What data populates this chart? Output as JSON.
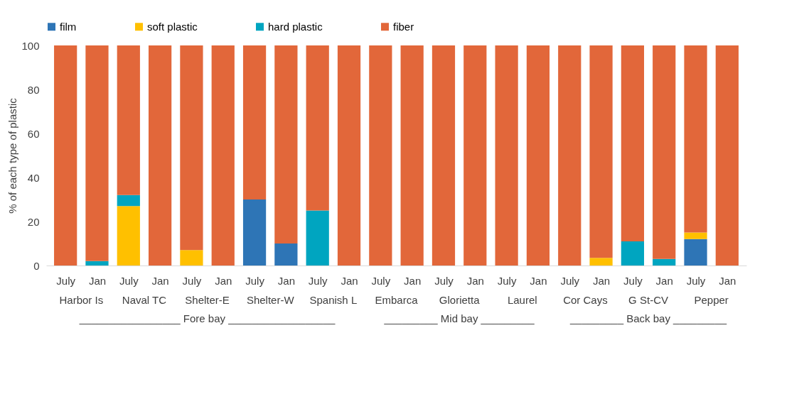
{
  "chart_data": {
    "type": "bar",
    "ylabel": "% of each type of plastic",
    "stacked": true,
    "legend": "top",
    "grid": false,
    "categories": [
      "July",
      "Jan",
      "July",
      "Jan",
      "July",
      "Jan",
      "July",
      "Jan",
      "July",
      "Jan",
      "July",
      "Jan",
      "July",
      "Jan",
      "July",
      "Jan",
      "July",
      "Jan",
      "July",
      "Jan",
      "July",
      "Jan"
    ],
    "series": [
      {
        "name": "film",
        "color": "#2e75b6",
        "values": [
          0,
          0,
          0,
          0,
          0,
          0,
          30,
          10,
          0,
          0,
          0,
          0,
          0,
          0,
          0,
          0,
          0,
          0,
          0,
          0,
          12,
          0
        ]
      },
      {
        "name": "soft plastic",
        "color": "#ffc000",
        "values": [
          0,
          0,
          27,
          0,
          7,
          0,
          0,
          0,
          0,
          0,
          0,
          0,
          0,
          0,
          0,
          0,
          0,
          3.5,
          0,
          0,
          3,
          0
        ]
      },
      {
        "name": "hard plastic",
        "color": "#00a5c0",
        "values": [
          0,
          2,
          5,
          0,
          0,
          0,
          0,
          0,
          25,
          0,
          0,
          0,
          0,
          0,
          0,
          0,
          0,
          0,
          11,
          3,
          0,
          0
        ]
      },
      {
        "name": "fiber",
        "color": "#e2673a",
        "values": [
          100,
          98,
          68,
          100,
          93,
          100,
          70,
          90,
          75,
          100,
          100,
          100,
          100,
          100,
          100,
          100,
          100,
          96.5,
          89,
          97,
          85,
          100
        ]
      }
    ],
    "ylim": [
      0,
      100
    ],
    "yticks": [
      0,
      20,
      40,
      60,
      80,
      100
    ],
    "annotations": [
      "Harbor Is",
      "Naval TC",
      "Shelter-E",
      "Shelter-W",
      "Spanish L",
      "Embarca",
      "Glorietta",
      "Laurel",
      "Cor Cays",
      "G St-CV",
      "Pepper",
      "_________________ Fore bay __________________",
      "_________ Mid bay _________",
      "_________ Back bay _________"
    ]
  }
}
